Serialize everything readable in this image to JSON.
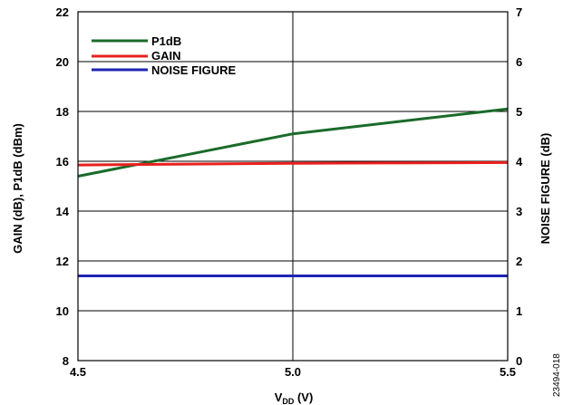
{
  "chart_data": {
    "type": "line",
    "xlabel_main": "V",
    "xlabel_sub": "DD",
    "xlabel_tail": " (V)",
    "ylabel_left": "GAIN (dB), P1dB (dBm)",
    "ylabel_right": "NOISE FIGURE (dB)",
    "x_ticks": [
      "4.5",
      "5.0",
      "5.5"
    ],
    "y_left_ticks": [
      "8",
      "10",
      "12",
      "14",
      "16",
      "18",
      "20",
      "22"
    ],
    "y_right_ticks": [
      "0",
      "1",
      "2",
      "3",
      "4",
      "5",
      "6",
      "7"
    ],
    "xlim": [
      4.5,
      5.5
    ],
    "ylim_left": [
      8,
      22
    ],
    "ylim_right": [
      0,
      7
    ],
    "grid": true,
    "legend_position": "top-left",
    "series": [
      {
        "name": "P1dB",
        "axis": "left",
        "color": "#1a6b2a",
        "x": [
          4.5,
          5.0,
          5.5
        ],
        "y": [
          15.4,
          17.1,
          18.1
        ]
      },
      {
        "name": "GAIN",
        "axis": "left",
        "color": "#e8201e",
        "x": [
          4.5,
          5.0,
          5.5
        ],
        "y": [
          15.85,
          15.92,
          15.95
        ]
      },
      {
        "name": "NOISE FIGURE",
        "axis": "right",
        "color": "#1f24b4",
        "x": [
          4.5,
          5.0,
          5.5
        ],
        "y": [
          1.7,
          1.7,
          1.7
        ]
      }
    ],
    "figure_code": "23494-018"
  }
}
